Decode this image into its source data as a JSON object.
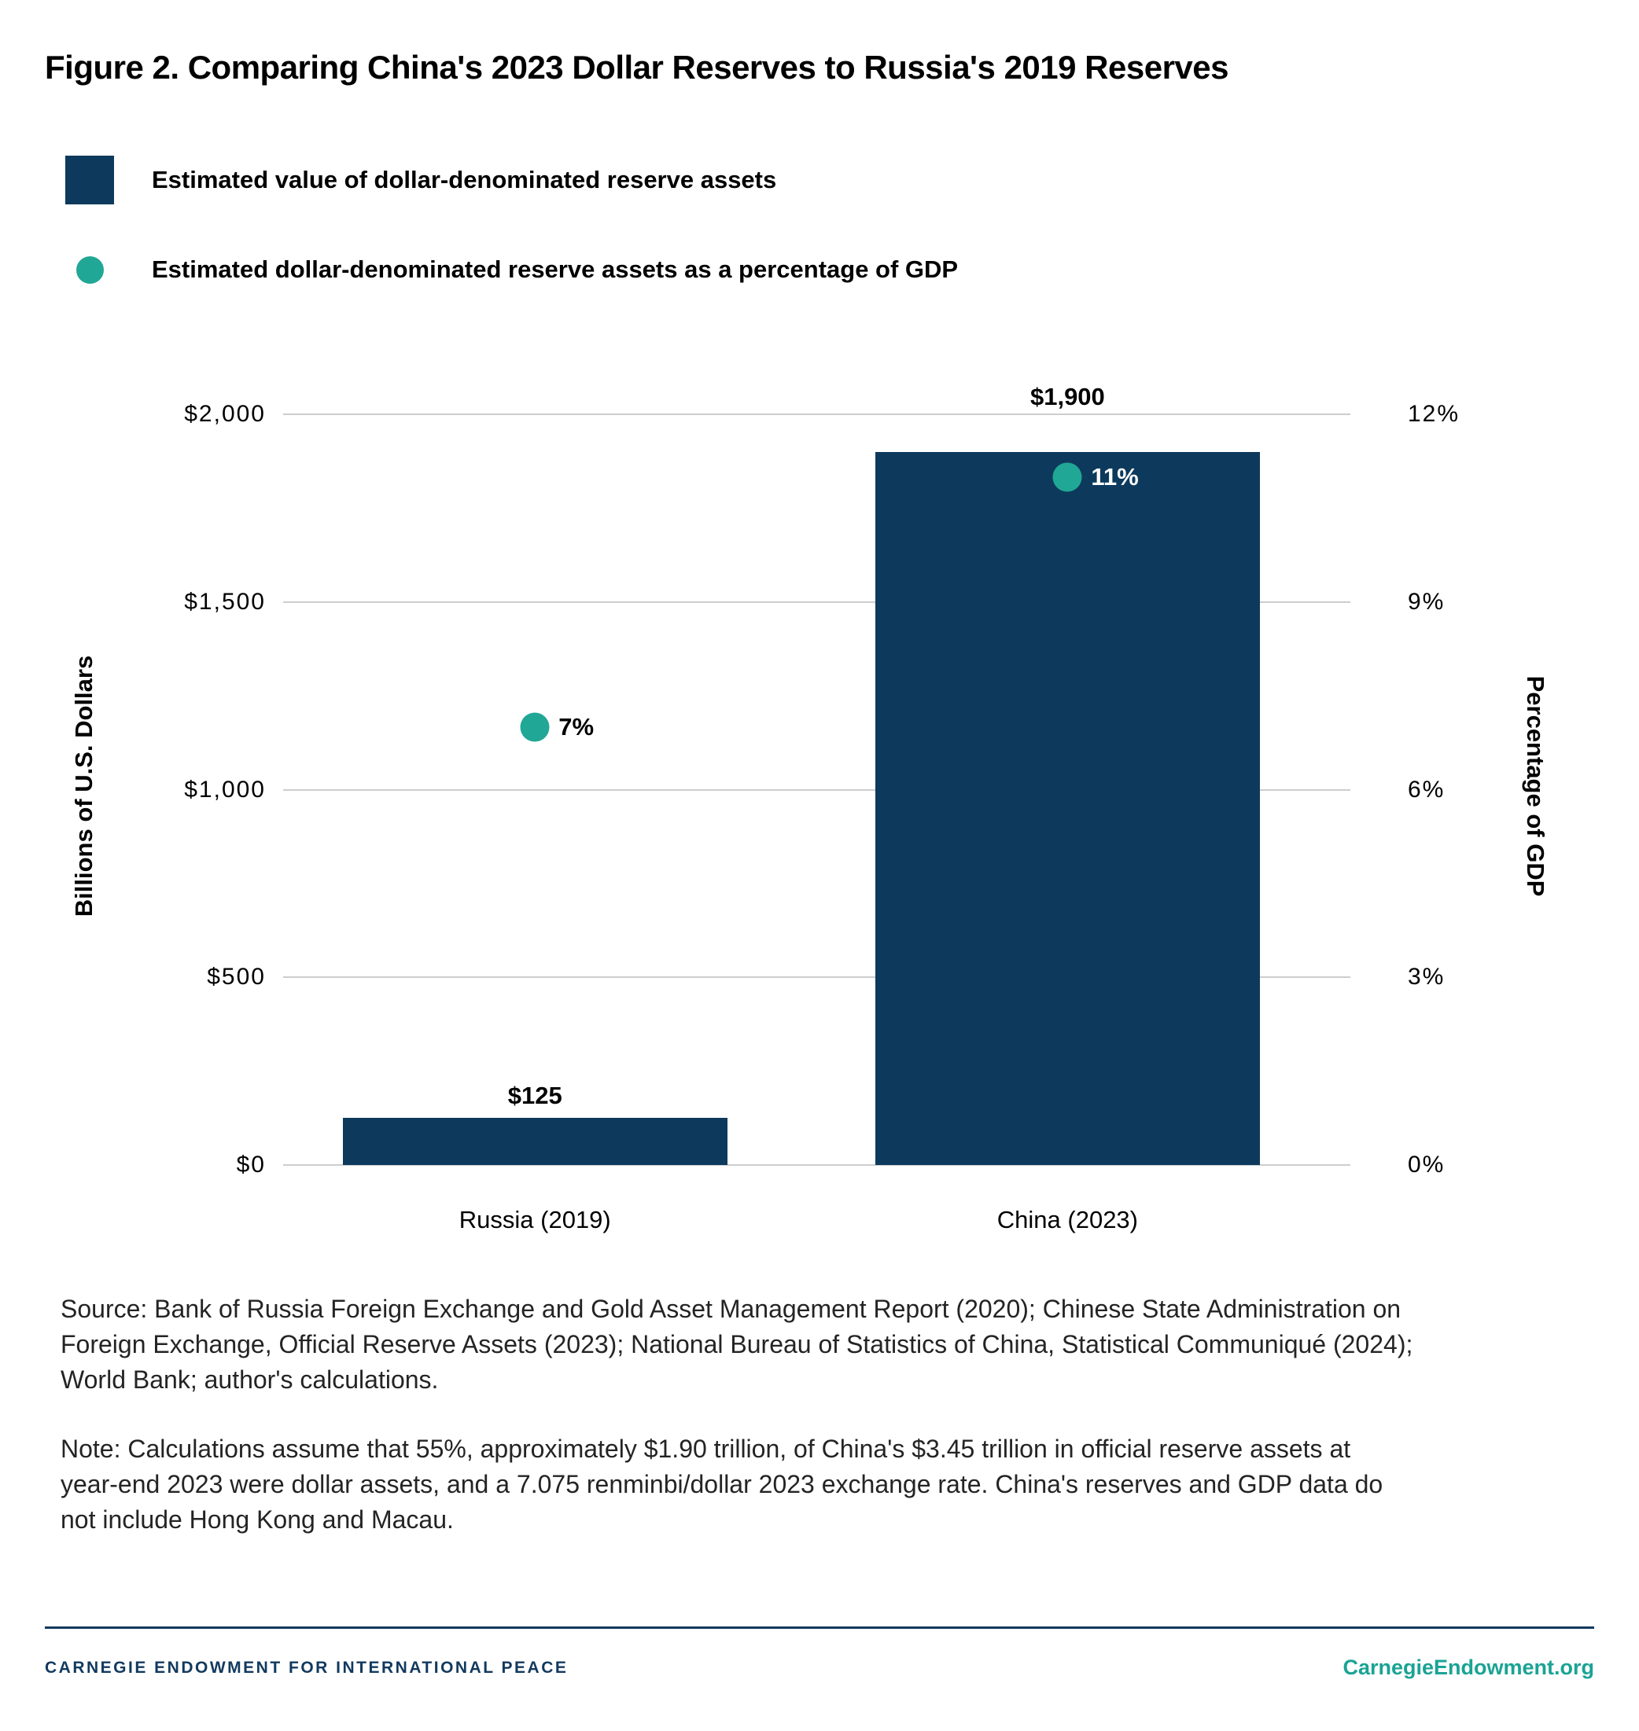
{
  "title": "Figure 2. Comparing China's 2023 Dollar Reserves to Russia's 2019 Reserves",
  "legend": {
    "items": [
      {
        "label": "Estimated value of dollar-denominated reserve assets",
        "swatch": "square",
        "color": "#0d3a5c"
      },
      {
        "label": "Estimated dollar-denominated reserve assets as a percentage of GDP",
        "swatch": "circle",
        "color": "#21a795"
      }
    ]
  },
  "chart_data": {
    "type": "bar",
    "categories": [
      "Russia (2019)",
      "China (2023)"
    ],
    "series": [
      {
        "name": "Estimated value of dollar-denominated reserve assets",
        "type": "bar",
        "axis": "left",
        "values": [
          125,
          1900
        ],
        "labels": [
          "$125",
          "$1,900"
        ],
        "color": "#0d3a5c"
      },
      {
        "name": "Estimated dollar-denominated reserve assets as a percentage of GDP",
        "type": "point",
        "axis": "right",
        "values": [
          7,
          11
        ],
        "labels": [
          "7%",
          "11%"
        ],
        "label_colors": [
          "#000000",
          "#ffffff"
        ],
        "color": "#21a795"
      }
    ],
    "left_axis": {
      "title": "Billions of U.S. Dollars",
      "max": 2000,
      "min": 0,
      "ticks": [
        {
          "label": "$2,000",
          "value": 2000
        },
        {
          "label": "$1,500",
          "value": 1500
        },
        {
          "label": "$1,000",
          "value": 1000
        },
        {
          "label": "$500",
          "value": 500
        },
        {
          "label": "$0",
          "value": 0
        }
      ]
    },
    "right_axis": {
      "title": "Percentage of GDP",
      "max": 12,
      "min": 0,
      "ticks": [
        {
          "label": "12%",
          "value": 12
        },
        {
          "label": "9%",
          "value": 9
        },
        {
          "label": "6%",
          "value": 6
        },
        {
          "label": "3%",
          "value": 3
        },
        {
          "label": "0%",
          "value": 0
        }
      ]
    },
    "grid": "horizontal",
    "legend_position": "top-left",
    "layout": {
      "bar_centers_pct": [
        23.6,
        73.5
      ],
      "bar_width_pct": 36
    }
  },
  "source": {
    "lines": [
      "Source: Bank of Russia Foreign Exchange and Gold Asset Management Report (2020); Chinese State Administration on",
      "Foreign Exchange, Official Reserve Assets (2023); National Bureau of Statistics of China, Statistical Communiqué (2024);",
      "World Bank; author's calculations."
    ]
  },
  "note": {
    "lines": [
      "Note: Calculations assume that 55%, approximately $1.90 trillion, of China's $3.45 trillion in official reserve assets at",
      "year-end 2023 were dollar assets, and a 7.075 renminbi/dollar 2023 exchange rate. China's reserves and GDP data do",
      "not include Hong Kong and Macau."
    ]
  },
  "footer": {
    "left": "CARNEGIE ENDOWMENT FOR INTERNATIONAL PEACE",
    "right": "CarnegieEndowment.org"
  },
  "colors": {
    "navy": "#0d3a5c",
    "teal": "#21a795",
    "gridline": "#cdcdcd",
    "heading_text": "#000000",
    "body_text": "#242424",
    "footer_navy": "#12395e",
    "footer_teal": "#1aa394"
  }
}
